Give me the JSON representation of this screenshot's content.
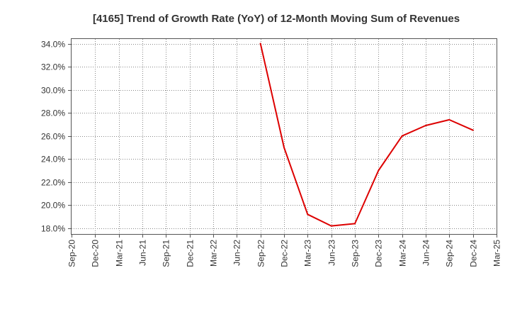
{
  "chart_data": {
    "type": "line",
    "title": "[4165]  Trend of Growth Rate (YoY) of 12-Month Moving Sum of Revenues",
    "xlabel": "",
    "ylabel": "",
    "x_ticks": [
      "Sep-20",
      "Dec-20",
      "Mar-21",
      "Jun-21",
      "Sep-21",
      "Dec-21",
      "Mar-22",
      "Jun-22",
      "Sep-22",
      "Dec-22",
      "Mar-23",
      "Jun-23",
      "Sep-23",
      "Dec-23",
      "Mar-24",
      "Jun-24",
      "Sep-24",
      "Dec-24",
      "Mar-25"
    ],
    "y_ticks": [
      "18.0%",
      "20.0%",
      "22.0%",
      "24.0%",
      "26.0%",
      "28.0%",
      "30.0%",
      "32.0%",
      "34.0%"
    ],
    "y_tick_values": [
      18,
      20,
      22,
      24,
      26,
      28,
      30,
      32,
      34
    ],
    "ylim": [
      17.5,
      34.4
    ],
    "grid": true,
    "line_color": "#dd0000",
    "series": [
      {
        "x": [
          "Sep-22",
          "Dec-22",
          "Mar-23",
          "Jun-23",
          "Sep-23",
          "Dec-23",
          "Mar-24",
          "Jun-24",
          "Sep-24",
          "Dec-24"
        ],
        "values": [
          34.0,
          25.0,
          19.2,
          18.2,
          18.4,
          23.0,
          26.0,
          26.9,
          27.4,
          26.5
        ]
      }
    ]
  }
}
